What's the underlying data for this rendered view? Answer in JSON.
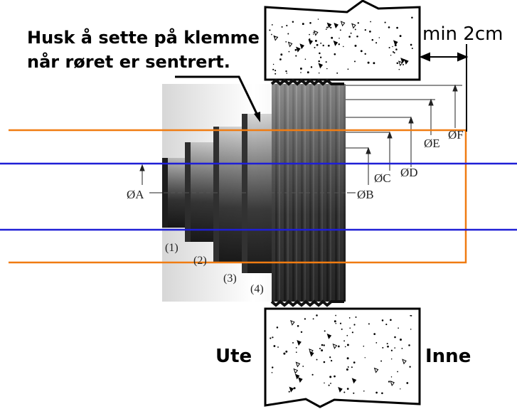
{
  "note": {
    "line1": "Husk å sette på klemme",
    "line2": "når røret er sentrert."
  },
  "clearance_label": "min  2cm",
  "side_labels": {
    "outside": "Ute",
    "inside": "Inne"
  },
  "diameter_labels": {
    "a": "ØA",
    "b": "ØB",
    "c": "ØC",
    "d": "ØD",
    "e": "ØE",
    "f": "ØF"
  },
  "step_labels": [
    "(1)",
    "(2)",
    "(3)",
    "(4)"
  ],
  "colors": {
    "pipe_outline": "#f07c12",
    "pipe_bore": "#1f1fd6",
    "sleeve_dark": "#2a2a2a",
    "wall_fill": "#ffffff"
  }
}
